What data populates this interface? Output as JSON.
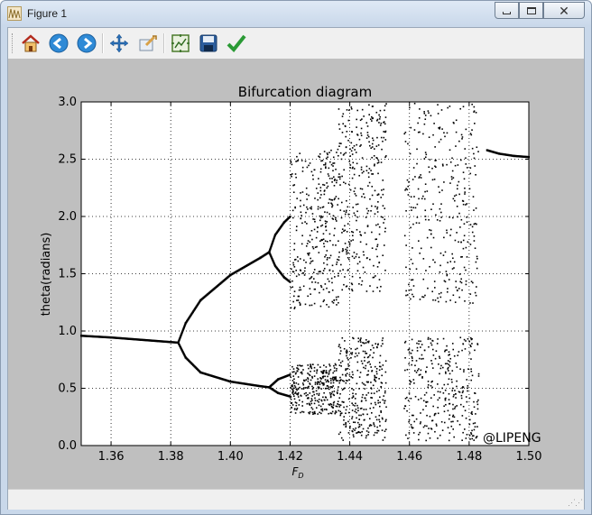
{
  "window": {
    "title": "Figure 1",
    "app_icon": "matplotlib-figure-icon",
    "controls": [
      "minimize-icon",
      "maximize-icon",
      "close-icon"
    ]
  },
  "toolbar": {
    "buttons": [
      {
        "name": "home-button",
        "icon": "home-icon"
      },
      {
        "name": "back-button",
        "icon": "back-arrow-icon"
      },
      {
        "name": "forward-button",
        "icon": "forward-arrow-icon"
      },
      {
        "name": "pan-button",
        "icon": "pan-move-icon"
      },
      {
        "name": "zoom-button",
        "icon": "zoom-rect-icon"
      },
      {
        "name": "subplots-button",
        "icon": "configure-subplots-icon"
      },
      {
        "name": "save-button",
        "icon": "save-disk-icon"
      },
      {
        "name": "edit-button",
        "icon": "edit-check-icon"
      }
    ]
  },
  "watermark": "@LIPENG",
  "chart_data": {
    "type": "scatter",
    "title": "Bifurcation diagram",
    "xlabel": "F",
    "xlabel_subscript": "D",
    "ylabel": "theta(radians)",
    "xlim": [
      1.35,
      1.5
    ],
    "ylim": [
      0.0,
      3.0
    ],
    "xticks": [
      "1.36",
      "1.38",
      "1.40",
      "1.42",
      "1.44",
      "1.46",
      "1.48",
      "1.50"
    ],
    "yticks": [
      "0.0",
      "0.5",
      "1.0",
      "1.5",
      "2.0",
      "2.5",
      "3.0"
    ],
    "grid": true,
    "marker_color": "#000000",
    "branches": [
      {
        "name": "period-1",
        "x": [
          1.35,
          1.36,
          1.37,
          1.38,
          1.3825
        ],
        "y": [
          0.96,
          0.945,
          0.925,
          0.905,
          0.9
        ]
      },
      {
        "name": "period-2-upper",
        "x": [
          1.3825,
          1.385,
          1.39,
          1.4,
          1.41,
          1.413
        ],
        "y": [
          0.9,
          1.07,
          1.27,
          1.49,
          1.64,
          1.69
        ]
      },
      {
        "name": "period-2-lower",
        "x": [
          1.3825,
          1.385,
          1.39,
          1.4,
          1.41,
          1.413
        ],
        "y": [
          0.9,
          0.77,
          0.64,
          0.56,
          0.52,
          0.51
        ]
      },
      {
        "name": "period-4-a",
        "x": [
          1.413,
          1.415,
          1.418,
          1.42
        ],
        "y": [
          1.69,
          1.84,
          1.95,
          2.0
        ]
      },
      {
        "name": "period-4-b",
        "x": [
          1.413,
          1.415,
          1.418,
          1.42
        ],
        "y": [
          1.69,
          1.57,
          1.47,
          1.43
        ]
      },
      {
        "name": "period-4-c",
        "x": [
          1.413,
          1.416,
          1.42
        ],
        "y": [
          0.51,
          0.58,
          0.62
        ]
      },
      {
        "name": "period-4-d",
        "x": [
          1.413,
          1.416,
          1.42
        ],
        "y": [
          0.51,
          0.46,
          0.43
        ]
      },
      {
        "name": "periodic-window-upper",
        "x": [
          1.486,
          1.49,
          1.495,
          1.5
        ],
        "y": [
          2.58,
          2.55,
          2.53,
          2.52
        ]
      }
    ],
    "chaotic_bands": [
      {
        "x_range": [
          1.42,
          1.436
        ],
        "y_range": [
          1.2,
          2.6
        ]
      },
      {
        "x_range": [
          1.42,
          1.436
        ],
        "y_range": [
          0.28,
          0.72
        ]
      },
      {
        "x_range": [
          1.436,
          1.452
        ],
        "y_range": [
          1.35,
          3.0
        ]
      },
      {
        "x_range": [
          1.436,
          1.452
        ],
        "y_range": [
          0.05,
          0.95
        ]
      },
      {
        "x_range": [
          1.458,
          1.483
        ],
        "y_range": [
          1.25,
          3.0
        ]
      },
      {
        "x_range": [
          1.458,
          1.483
        ],
        "y_range": [
          0.05,
          0.95
        ]
      }
    ]
  }
}
